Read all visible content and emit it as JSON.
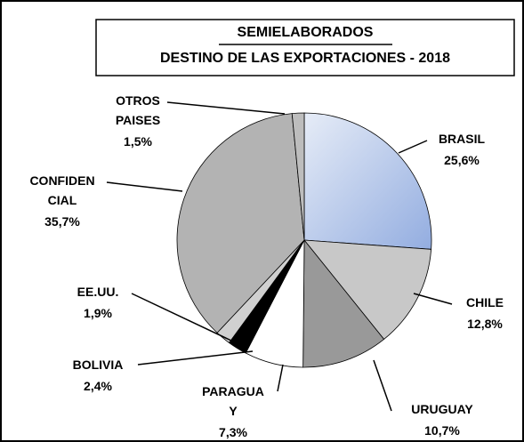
{
  "chart_data": {
    "type": "pie",
    "title": "SEMIELABORADOS",
    "subtitle": "DESTINO DE LAS EXPORTACIONES - 2018",
    "categories": [
      "BRASIL",
      "CHILE",
      "URUGUAY",
      "PARAGUA\nY",
      "BOLIVIA",
      "EE.UU.",
      "CONFIDEN\nCIAL",
      "OTROS\nPAISES"
    ],
    "values": [
      25.6,
      12.8,
      10.7,
      7.3,
      2.4,
      1.9,
      35.7,
      1.5
    ],
    "value_labels": [
      "25,6%",
      "12,8%",
      "10,7%",
      "7,3%",
      "2,4%",
      "1,9%",
      "35,7%",
      "1,5%"
    ],
    "colors": [
      "#b4c7ea",
      "#c8c8c8",
      "#999999",
      "#ffffff",
      "#000000",
      "#d0d0d0",
      "#b3b3b3",
      "#bdbdbd"
    ]
  }
}
